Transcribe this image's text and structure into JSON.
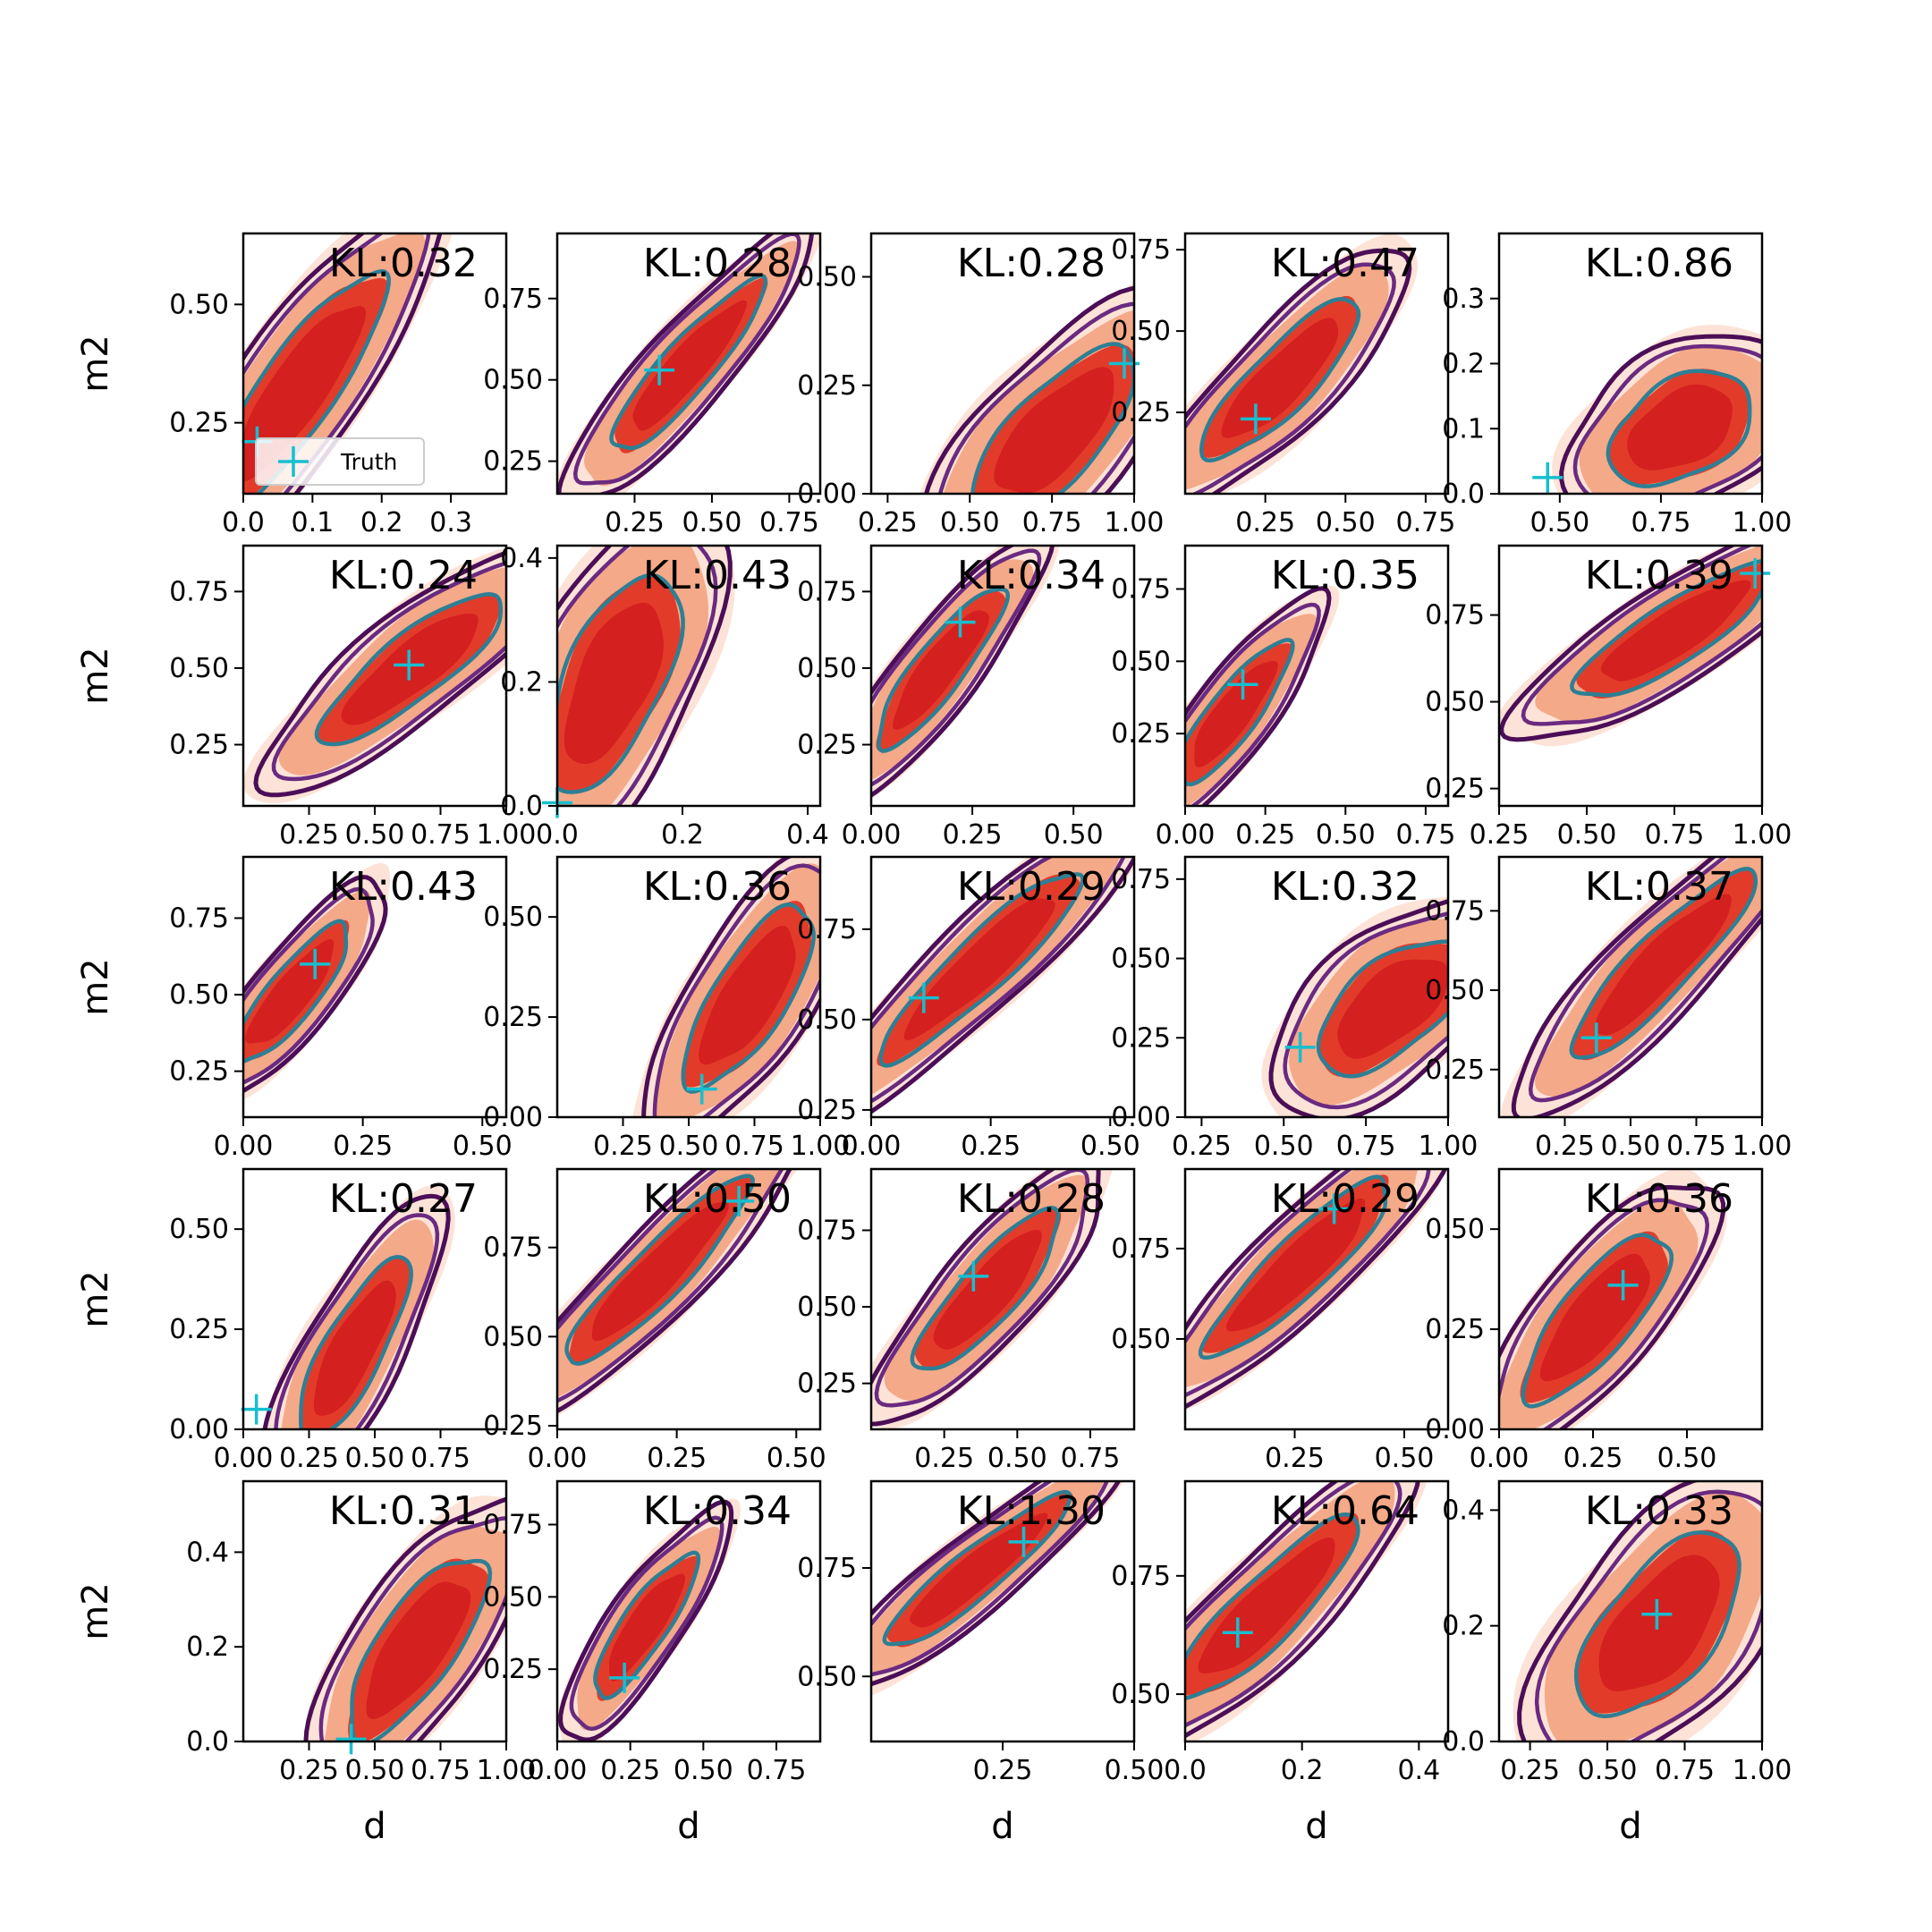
{
  "figure": {
    "rows": 5,
    "cols": 5,
    "colors": {
      "outer_fill": "#fde3d7",
      "mid_fill": "#f4a989",
      "inner_fill": "#d4201f",
      "inner_fill_alt": "#e33b2a",
      "contour_outer": "#4b0e57",
      "contour_mid": "#6a2a80",
      "contour_inner": "#2e7f94",
      "truth_marker": "#17becf"
    },
    "legend": {
      "label": "Truth",
      "marker": "plus",
      "location": "lower-left",
      "panel": 0
    },
    "grid": false
  },
  "chart_data": [
    {
      "type": "contour",
      "kl": "KL:0.32",
      "xlabel": "",
      "ylabel": "m2",
      "xlim": [
        0.0,
        0.38
      ],
      "ylim": [
        0.1,
        0.65
      ],
      "xticks": [
        "0.0",
        "0.1",
        "0.2",
        "0.3"
      ],
      "xtick_values": [
        0.0,
        0.1,
        0.2,
        0.3
      ],
      "yticks": [
        "0.25",
        "0.50"
      ],
      "ytick_values": [
        0.25,
        0.5
      ],
      "center": [
        0.08,
        0.32
      ],
      "spread": [
        0.07,
        0.14
      ],
      "rho": 0.85,
      "truth": [
        0.02,
        0.21
      ],
      "legend": true
    },
    {
      "type": "contour",
      "kl": "KL:0.28",
      "xlabel": "",
      "ylabel": "",
      "xlim": [
        0.0,
        0.85
      ],
      "ylim": [
        0.15,
        0.95
      ],
      "xticks": [
        "0.25",
        "0.50",
        "0.75"
      ],
      "xtick_values": [
        0.25,
        0.5,
        0.75
      ],
      "yticks": [
        "0.25",
        "0.50",
        "0.75"
      ],
      "ytick_values": [
        0.25,
        0.5,
        0.75
      ],
      "center": [
        0.42,
        0.54
      ],
      "spread": [
        0.14,
        0.15
      ],
      "rho": 0.9,
      "truth": [
        0.33,
        0.53
      ]
    },
    {
      "type": "contour",
      "kl": "KL:0.28",
      "xlabel": "",
      "ylabel": "",
      "xlim": [
        0.2,
        1.0
      ],
      "ylim": [
        0.0,
        0.6
      ],
      "xticks": [
        "0.25",
        "0.50",
        "0.75",
        "1.00"
      ],
      "xtick_values": [
        0.25,
        0.5,
        0.75,
        1.0
      ],
      "yticks": [
        "0.00",
        "0.25",
        "0.50"
      ],
      "ytick_values": [
        0.0,
        0.25,
        0.5
      ],
      "center": [
        0.76,
        0.14
      ],
      "spread": [
        0.14,
        0.11
      ],
      "rho": 0.7,
      "truth": [
        0.97,
        0.3
      ]
    },
    {
      "type": "contour",
      "kl": "KL:0.47",
      "xlabel": "",
      "ylabel": "",
      "xlim": [
        0.0,
        0.82
      ],
      "ylim": [
        0.0,
        0.8
      ],
      "xticks": [
        "0.25",
        "0.50",
        "0.75"
      ],
      "xtick_values": [
        0.25,
        0.5,
        0.75
      ],
      "yticks": [
        "0.25",
        "0.50",
        "0.75"
      ],
      "ytick_values": [
        0.25,
        0.5,
        0.75
      ],
      "center": [
        0.3,
        0.35
      ],
      "spread": [
        0.14,
        0.14
      ],
      "rho": 0.85,
      "truth": [
        0.22,
        0.23
      ]
    },
    {
      "type": "contour",
      "kl": "KL:0.86",
      "xlabel": "",
      "ylabel": "",
      "xlim": [
        0.35,
        1.0
      ],
      "ylim": [
        0.0,
        0.4
      ],
      "xticks": [
        "0.50",
        "0.75",
        "1.00"
      ],
      "xtick_values": [
        0.5,
        0.75,
        1.0
      ],
      "yticks": [
        "0.0",
        "0.1",
        "0.2",
        "0.3"
      ],
      "ytick_values": [
        0.0,
        0.1,
        0.2,
        0.3
      ],
      "center": [
        0.8,
        0.1
      ],
      "spread": [
        0.1,
        0.05
      ],
      "rho": 0.4,
      "truth": [
        0.47,
        0.025
      ]
    },
    {
      "type": "contour",
      "kl": "KL:0.24",
      "xlabel": "",
      "ylabel": "m2",
      "xlim": [
        0.0,
        1.0
      ],
      "ylim": [
        0.05,
        0.9
      ],
      "xticks": [
        "0.25",
        "0.50",
        "0.75",
        "1.00"
      ],
      "xtick_values": [
        0.25,
        0.5,
        0.75,
        1.0
      ],
      "yticks": [
        "0.25",
        "0.50",
        "0.75"
      ],
      "ytick_values": [
        0.25,
        0.5,
        0.75
      ],
      "center": [
        0.64,
        0.5
      ],
      "spread": [
        0.2,
        0.14
      ],
      "rho": 0.85,
      "truth": [
        0.63,
        0.51
      ]
    },
    {
      "type": "contour",
      "kl": "KL:0.43",
      "xlabel": "",
      "ylabel": "",
      "xlim": [
        0.0,
        0.42
      ],
      "ylim": [
        0.0,
        0.42
      ],
      "xticks": [
        "0.0",
        "0.2",
        "0.4"
      ],
      "xtick_values": [
        0.0,
        0.2,
        0.4
      ],
      "yticks": [
        "0.0",
        "0.2",
        "0.4"
      ],
      "ytick_values": [
        0.0,
        0.2,
        0.4
      ],
      "center": [
        0.09,
        0.2
      ],
      "spread": [
        0.06,
        0.1
      ],
      "rho": 0.6,
      "truth": [
        0.0,
        0.005
      ]
    },
    {
      "type": "contour",
      "kl": "KL:0.34",
      "xlabel": "",
      "ylabel": "",
      "xlim": [
        0.0,
        0.65
      ],
      "ylim": [
        0.05,
        0.9
      ],
      "xticks": [
        "0.00",
        "0.25",
        "0.50"
      ],
      "xtick_values": [
        0.0,
        0.25,
        0.5
      ],
      "yticks": [
        "0.25",
        "0.50",
        "0.75"
      ],
      "ytick_values": [
        0.25,
        0.5,
        0.75
      ],
      "center": [
        0.17,
        0.5
      ],
      "spread": [
        0.09,
        0.15
      ],
      "rho": 0.88,
      "truth": [
        0.22,
        0.65
      ]
    },
    {
      "type": "contour",
      "kl": "KL:0.35",
      "xlabel": "",
      "ylabel": "",
      "xlim": [
        0.0,
        0.82
      ],
      "ylim": [
        0.0,
        0.9
      ],
      "xticks": [
        "0.00",
        "0.25",
        "0.50",
        "0.75"
      ],
      "xtick_values": [
        0.0,
        0.25,
        0.5,
        0.75
      ],
      "yticks": [
        "0.25",
        "0.50",
        "0.75"
      ],
      "ytick_values": [
        0.25,
        0.5,
        0.75
      ],
      "center": [
        0.15,
        0.32
      ],
      "spread": [
        0.1,
        0.14
      ],
      "rho": 0.85,
      "truth": [
        0.18,
        0.42
      ]
    },
    {
      "type": "contour",
      "kl": "KL:0.39",
      "xlabel": "",
      "ylabel": "",
      "xlim": [
        0.25,
        1.0
      ],
      "ylim": [
        0.2,
        0.95
      ],
      "xticks": [
        "0.25",
        "0.50",
        "0.75",
        "1.00"
      ],
      "xtick_values": [
        0.25,
        0.5,
        0.75,
        1.0
      ],
      "yticks": [
        "0.25",
        "0.50",
        "0.75"
      ],
      "ytick_values": [
        0.25,
        0.5,
        0.75
      ],
      "center": [
        0.75,
        0.7
      ],
      "spread": [
        0.16,
        0.11
      ],
      "rho": 0.85,
      "truth": [
        0.98,
        0.87
      ]
    },
    {
      "type": "contour",
      "kl": "KL:0.43",
      "xlabel": "",
      "ylabel": "m2",
      "xlim": [
        0.0,
        0.55
      ],
      "ylim": [
        0.1,
        0.95
      ],
      "xticks": [
        "0.00",
        "0.25",
        "0.50"
      ],
      "xtick_values": [
        0.0,
        0.25,
        0.5
      ],
      "yticks": [
        "0.25",
        "0.50",
        "0.75"
      ],
      "ytick_values": [
        0.25,
        0.5,
        0.75
      ],
      "center": [
        0.1,
        0.5
      ],
      "spread": [
        0.07,
        0.13
      ],
      "rho": 0.85,
      "truth": [
        0.15,
        0.6
      ]
    },
    {
      "type": "contour",
      "kl": "KL:0.36",
      "xlabel": "",
      "ylabel": "",
      "xlim": [
        0.0,
        1.0
      ],
      "ylim": [
        0.0,
        0.65
      ],
      "xticks": [
        "0.25",
        "0.50",
        "0.75",
        "1.00"
      ],
      "xtick_values": [
        0.25,
        0.5,
        0.75,
        1.0
      ],
      "yticks": [
        "0.00",
        "0.25",
        "0.50"
      ],
      "ytick_values": [
        0.0,
        0.25,
        0.5
      ],
      "center": [
        0.73,
        0.3
      ],
      "spread": [
        0.14,
        0.13
      ],
      "rho": 0.75,
      "truth": [
        0.55,
        0.07
      ]
    },
    {
      "type": "contour",
      "kl": "KL:0.29",
      "xlabel": "",
      "ylabel": "",
      "xlim": [
        0.0,
        0.55
      ],
      "ylim": [
        0.23,
        0.95
      ],
      "xticks": [
        "0.00",
        "0.25",
        "0.50"
      ],
      "xtick_values": [
        0.0,
        0.25,
        0.5
      ],
      "yticks": [
        "0.25",
        "0.50",
        "0.75"
      ],
      "ytick_values": [
        0.25,
        0.5,
        0.75
      ],
      "center": [
        0.23,
        0.65
      ],
      "spread": [
        0.12,
        0.15
      ],
      "rho": 0.92,
      "truth": [
        0.11,
        0.56
      ]
    },
    {
      "type": "contour",
      "kl": "KL:0.32",
      "xlabel": "",
      "ylabel": "",
      "xlim": [
        0.2,
        1.0
      ],
      "ylim": [
        0.0,
        0.82
      ],
      "xticks": [
        "0.25",
        "0.50",
        "0.75",
        "1.00"
      ],
      "xtick_values": [
        0.25,
        0.5,
        0.75,
        1.0
      ],
      "yticks": [
        "0.00",
        "0.25",
        "0.50",
        "0.75"
      ],
      "ytick_values": [
        0.0,
        0.25,
        0.5,
        0.75
      ],
      "center": [
        0.83,
        0.35
      ],
      "spread": [
        0.13,
        0.12
      ],
      "rho": 0.6,
      "truth": [
        0.55,
        0.22
      ]
    },
    {
      "type": "contour",
      "kl": "KL:0.37",
      "xlabel": "",
      "ylabel": "",
      "xlim": [
        0.0,
        1.0
      ],
      "ylim": [
        0.1,
        0.92
      ],
      "xticks": [
        "0.25",
        "0.50",
        "0.75",
        "1.00"
      ],
      "xtick_values": [
        0.25,
        0.5,
        0.75,
        1.0
      ],
      "yticks": [
        "0.25",
        "0.50",
        "0.75"
      ],
      "ytick_values": [
        0.25,
        0.5,
        0.75
      ],
      "center": [
        0.62,
        0.58
      ],
      "spread": [
        0.2,
        0.17
      ],
      "rho": 0.9,
      "truth": [
        0.37,
        0.35
      ]
    },
    {
      "type": "contour",
      "kl": "KL:0.27",
      "xlabel": "",
      "ylabel": "m2",
      "xlim": [
        0.0,
        1.0
      ],
      "ylim": [
        0.0,
        0.65
      ],
      "xticks": [
        "0.00",
        "0.25",
        "0.50",
        "0.75"
      ],
      "xtick_values": [
        0.0,
        0.25,
        0.5,
        0.75
      ],
      "yticks": [
        "0.00",
        "0.25",
        "0.50"
      ],
      "ytick_values": [
        0.0,
        0.25,
        0.5
      ],
      "center": [
        0.42,
        0.2
      ],
      "spread": [
        0.12,
        0.13
      ],
      "rho": 0.8,
      "truth": [
        0.05,
        0.05
      ]
    },
    {
      "type": "contour",
      "kl": "KL:0.50",
      "xlabel": "",
      "ylabel": "",
      "xlim": [
        0.0,
        0.55
      ],
      "ylim": [
        0.24,
        0.97
      ],
      "xticks": [
        "0.00",
        "0.25",
        "0.50"
      ],
      "xtick_values": [
        0.0,
        0.25,
        0.5
      ],
      "yticks": [
        "0.25",
        "0.50",
        "0.75"
      ],
      "ytick_values": [
        0.25,
        0.5,
        0.75
      ],
      "center": [
        0.21,
        0.68
      ],
      "spread": [
        0.11,
        0.15
      ],
      "rho": 0.92,
      "truth": [
        0.38,
        0.88
      ]
    },
    {
      "type": "contour",
      "kl": "KL:0.28",
      "xlabel": "",
      "ylabel": "",
      "xlim": [
        0.0,
        0.9
      ],
      "ylim": [
        0.1,
        0.95
      ],
      "xticks": [
        "0.25",
        "0.50",
        "0.75"
      ],
      "xtick_values": [
        0.25,
        0.5,
        0.75
      ],
      "yticks": [
        "0.25",
        "0.50",
        "0.75"
      ],
      "ytick_values": [
        0.25,
        0.5,
        0.75
      ],
      "center": [
        0.4,
        0.55
      ],
      "spread": [
        0.14,
        0.15
      ],
      "rho": 0.85,
      "truth": [
        0.35,
        0.6
      ]
    },
    {
      "type": "contour",
      "kl": "KL:0.29",
      "xlabel": "",
      "ylabel": "",
      "xlim": [
        0.0,
        0.6
      ],
      "ylim": [
        0.25,
        0.97
      ],
      "xticks": [
        "0.25",
        "0.50"
      ],
      "xtick_values": [
        0.25,
        0.5
      ],
      "yticks": [
        "0.50",
        "0.75"
      ],
      "ytick_values": [
        0.5,
        0.75
      ],
      "center": [
        0.26,
        0.7
      ],
      "spread": [
        0.12,
        0.14
      ],
      "rho": 0.9,
      "truth": [
        0.34,
        0.86
      ]
    },
    {
      "type": "contour",
      "kl": "KL:0.36",
      "xlabel": "",
      "ylabel": "",
      "xlim": [
        0.0,
        0.7
      ],
      "ylim": [
        0.0,
        0.65
      ],
      "xticks": [
        "0.00",
        "0.25",
        "0.50"
      ],
      "xtick_values": [
        0.0,
        0.25,
        0.5
      ],
      "yticks": [
        "0.00",
        "0.25",
        "0.50"
      ],
      "ytick_values": [
        0.0,
        0.25,
        0.5
      ],
      "center": [
        0.26,
        0.28
      ],
      "spread": [
        0.11,
        0.12
      ],
      "rho": 0.78,
      "truth": [
        0.33,
        0.36
      ]
    },
    {
      "type": "contour",
      "kl": "KL:0.31",
      "xlabel": "d",
      "ylabel": "m2",
      "xlim": [
        0.0,
        1.0
      ],
      "ylim": [
        0.0,
        0.55
      ],
      "xticks": [
        "0.25",
        "0.50",
        "0.75",
        "1.00"
      ],
      "xtick_values": [
        0.25,
        0.5,
        0.75,
        1.0
      ],
      "yticks": [
        "0.0",
        "0.2",
        "0.4"
      ],
      "ytick_values": [
        0.0,
        0.2,
        0.4
      ],
      "center": [
        0.66,
        0.2
      ],
      "spread": [
        0.15,
        0.11
      ],
      "rho": 0.75,
      "truth": [
        0.41,
        0.005
      ]
    },
    {
      "type": "contour",
      "kl": "KL:0.34",
      "xlabel": "d",
      "ylabel": "",
      "xlim": [
        0.0,
        0.9
      ],
      "ylim": [
        0.0,
        0.9
      ],
      "xticks": [
        "0.00",
        "0.25",
        "0.50",
        "0.75"
      ],
      "xtick_values": [
        0.0,
        0.25,
        0.5,
        0.75
      ],
      "yticks": [
        "0.25",
        "0.50",
        "0.75"
      ],
      "ytick_values": [
        0.25,
        0.5,
        0.75
      ],
      "center": [
        0.3,
        0.4
      ],
      "spread": [
        0.1,
        0.14
      ],
      "rho": 0.85,
      "truth": [
        0.23,
        0.22
      ]
    },
    {
      "type": "contour",
      "kl": "KL:1.30",
      "xlabel": "d",
      "ylabel": "",
      "xlim": [
        0.0,
        0.5
      ],
      "ylim": [
        0.35,
        0.95
      ],
      "xticks": [
        "0.25",
        "0.50"
      ],
      "xtick_values": [
        0.25,
        0.5
      ],
      "yticks": [
        "0.50",
        "0.75"
      ],
      "ytick_values": [
        0.5,
        0.75
      ],
      "center": [
        0.2,
        0.74
      ],
      "spread": [
        0.1,
        0.1
      ],
      "rho": 0.92,
      "truth": [
        0.29,
        0.81
      ]
    },
    {
      "type": "contour",
      "kl": "KL:0.64",
      "xlabel": "d",
      "ylabel": "",
      "xlim": [
        0.0,
        0.45
      ],
      "ylim": [
        0.4,
        0.95
      ],
      "xticks": [
        "0.0",
        "0.2",
        "0.4"
      ],
      "xtick_values": [
        0.0,
        0.2,
        0.4
      ],
      "yticks": [
        "0.50",
        "0.75"
      ],
      "ytick_values": [
        0.5,
        0.75
      ],
      "center": [
        0.14,
        0.68
      ],
      "spread": [
        0.09,
        0.11
      ],
      "rho": 0.88,
      "truth": [
        0.09,
        0.63
      ]
    },
    {
      "type": "contour",
      "kl": "KL:0.33",
      "xlabel": "d",
      "ylabel": "",
      "xlim": [
        0.15,
        1.0
      ],
      "ylim": [
        0.0,
        0.45
      ],
      "xticks": [
        "0.25",
        "0.50",
        "0.75",
        "1.00"
      ],
      "xtick_values": [
        0.25,
        0.5,
        0.75,
        1.0
      ],
      "yticks": [
        "0.0",
        "0.2",
        "0.4"
      ],
      "ytick_values": [
        0.0,
        0.2,
        0.4
      ],
      "center": [
        0.67,
        0.2
      ],
      "spread": [
        0.15,
        0.09
      ],
      "rho": 0.6,
      "truth": [
        0.66,
        0.22
      ]
    }
  ]
}
